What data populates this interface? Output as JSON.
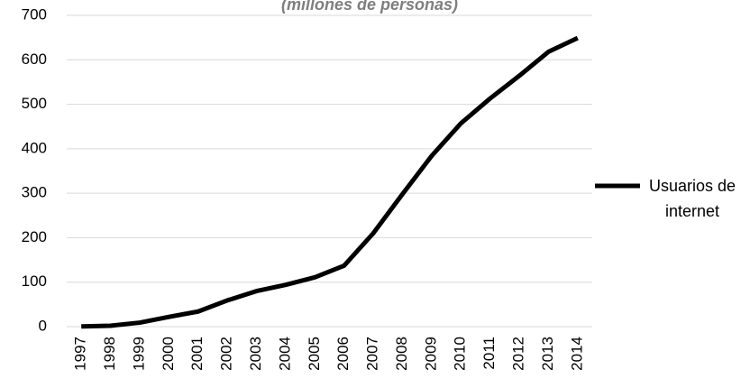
{
  "chart_data": {
    "type": "line",
    "subtitle": "(millones de personas)",
    "categories": [
      "1997",
      "1998",
      "1999",
      "2000",
      "2001",
      "2002",
      "2003",
      "2004",
      "2005",
      "2006",
      "2007",
      "2008",
      "2009",
      "2010",
      "2011",
      "2012",
      "2013",
      "2014"
    ],
    "series": [
      {
        "name": "Usuarios de internet",
        "color": "#000000",
        "values": [
          0.6,
          2,
          9,
          22,
          34,
          59,
          80,
          94,
          111,
          137,
          210,
          298,
          384,
          457,
          513,
          564,
          618,
          649
        ]
      }
    ],
    "ylim": [
      0,
      700
    ],
    "yticks": [
      0,
      100,
      200,
      300,
      400,
      500,
      600,
      700
    ],
    "grid": true,
    "legend": "right"
  }
}
